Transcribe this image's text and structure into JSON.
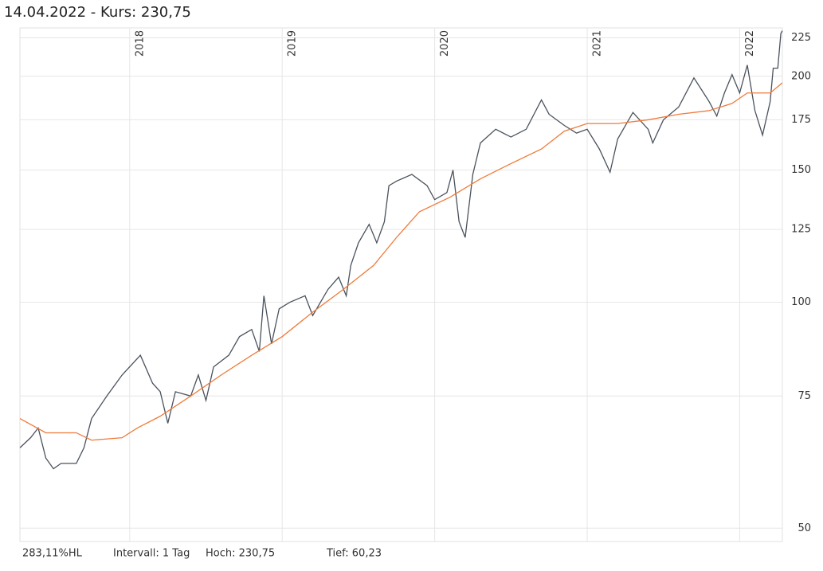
{
  "chart_data": {
    "type": "line",
    "title": "14.04.2022  -  Kurs: 230,75",
    "footer": [
      "283,11%HL",
      "Intervall: 1 Tag",
      "Hoch:  230,75",
      "Tief:  60,23"
    ],
    "xlim": [
      2017.28,
      2022.28
    ],
    "xticks": [
      2018,
      2019,
      2020,
      2021,
      2022
    ],
    "ylim": [
      48,
      232
    ],
    "yticks": [
      50,
      75,
      100,
      125,
      150,
      175,
      200,
      225
    ],
    "ylog": true,
    "grid": true,
    "series": [
      {
        "color": "#4a525c",
        "x": [
          2017.28,
          2017.35,
          2017.4,
          2017.45,
          2017.5,
          2017.55,
          2017.65,
          2017.7,
          2017.75,
          2017.85,
          2017.95,
          2018.07,
          2018.15,
          2018.2,
          2018.25,
          2018.3,
          2018.4,
          2018.45,
          2018.5,
          2018.55,
          2018.65,
          2018.72,
          2018.8,
          2018.85,
          2018.88,
          2018.93,
          2018.98,
          2019.05,
          2019.15,
          2019.2,
          2019.3,
          2019.37,
          2019.42,
          2019.45,
          2019.5,
          2019.57,
          2019.62,
          2019.67,
          2019.7,
          2019.75,
          2019.85,
          2019.95,
          2020.0,
          2020.08,
          2020.12,
          2020.16,
          2020.2,
          2020.25,
          2020.3,
          2020.4,
          2020.5,
          2020.6,
          2020.7,
          2020.75,
          2020.85,
          2020.93,
          2021.0,
          2021.08,
          2021.15,
          2021.2,
          2021.3,
          2021.4,
          2021.43,
          2021.5,
          2021.6,
          2021.7,
          2021.8,
          2021.85,
          2021.9,
          2021.95,
          2022.0,
          2022.05,
          2022.1,
          2022.15,
          2022.2,
          2022.22,
          2022.25,
          2022.27,
          2022.28
        ],
        "values": [
          64,
          66,
          68,
          62,
          60,
          61,
          61,
          64,
          70,
          75,
          80,
          85,
          78,
          76,
          69,
          76,
          75,
          80,
          74,
          82,
          85,
          90,
          92,
          86,
          102,
          88,
          98,
          100,
          102,
          96,
          104,
          108,
          102,
          112,
          120,
          127,
          120,
          128,
          143,
          145,
          148,
          143,
          137,
          140,
          150,
          128,
          122,
          148,
          163,
          170,
          166,
          170,
          186,
          178,
          172,
          168,
          170,
          160,
          149,
          165,
          179,
          170,
          163,
          175,
          182,
          199,
          185,
          177,
          190,
          201,
          190,
          207,
          180,
          167,
          185,
          205,
          205,
          228,
          230
        ]
      },
      {
        "color": "#f07a3a",
        "x": [
          2017.28,
          2017.45,
          2017.65,
          2017.75,
          2017.95,
          2018.05,
          2018.2,
          2018.4,
          2018.6,
          2018.8,
          2019.0,
          2019.2,
          2019.4,
          2019.6,
          2019.75,
          2019.9,
          2020.1,
          2020.3,
          2020.5,
          2020.7,
          2020.85,
          2021.0,
          2021.2,
          2021.4,
          2021.6,
          2021.8,
          2021.95,
          2022.05,
          2022.2,
          2022.28
        ],
        "values": [
          70,
          67,
          67,
          65.5,
          66,
          68,
          70.5,
          75,
          80,
          85,
          90,
          97,
          104,
          112,
          122,
          132,
          138,
          146,
          153,
          160,
          169,
          173,
          173,
          175,
          178,
          180,
          184,
          190,
          190,
          196
        ]
      }
    ]
  }
}
